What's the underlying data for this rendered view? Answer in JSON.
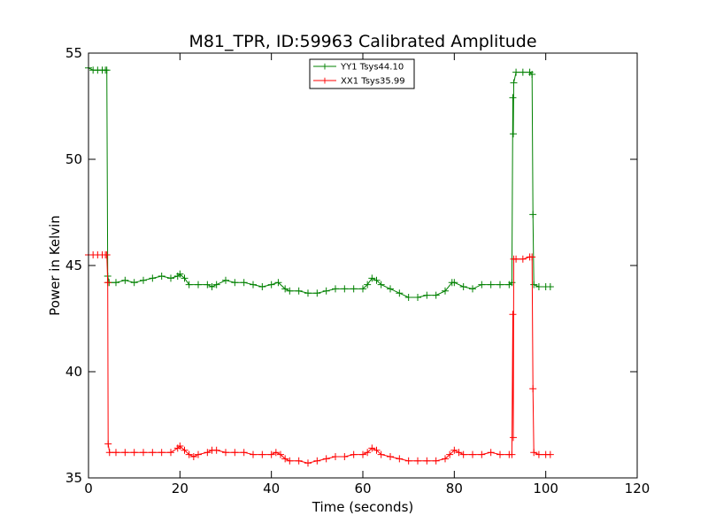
{
  "chart_data": {
    "type": "line",
    "title": "M81_TPR, ID:59963 Calibrated Amplitude",
    "xlabel": "Time (seconds)",
    "ylabel": "Power in Kelvin",
    "xlim": [
      0,
      120
    ],
    "ylim": [
      35,
      55
    ],
    "x_ticks": [
      "0",
      "20",
      "40",
      "60",
      "80",
      "100",
      "120"
    ],
    "y_ticks": [
      "35",
      "40",
      "45",
      "50",
      "55"
    ],
    "grid": false,
    "legend_position": "top-center",
    "marker": "+",
    "series": [
      {
        "name": "YY1 Tsys44.10",
        "color": "#008000",
        "points": [
          [
            0.0,
            54.3
          ],
          [
            1.0,
            54.2
          ],
          [
            2.0,
            54.2
          ],
          [
            3.0,
            54.2
          ],
          [
            3.7,
            54.2
          ],
          [
            4.0,
            54.2
          ],
          [
            4.2,
            44.5
          ],
          [
            4.5,
            44.2
          ],
          [
            6.0,
            44.2
          ],
          [
            8.0,
            44.3
          ],
          [
            10.0,
            44.2
          ],
          [
            12.0,
            44.3
          ],
          [
            14.0,
            44.4
          ],
          [
            16.0,
            44.5
          ],
          [
            18.0,
            44.4
          ],
          [
            19.5,
            44.5
          ],
          [
            20.0,
            44.6
          ],
          [
            21.0,
            44.4
          ],
          [
            22.0,
            44.1
          ],
          [
            24.0,
            44.1
          ],
          [
            26.0,
            44.1
          ],
          [
            27.0,
            44.0
          ],
          [
            28.0,
            44.1
          ],
          [
            30.0,
            44.3
          ],
          [
            32.0,
            44.2
          ],
          [
            34.0,
            44.2
          ],
          [
            36.0,
            44.1
          ],
          [
            38.0,
            44.0
          ],
          [
            40.0,
            44.1
          ],
          [
            41.5,
            44.2
          ],
          [
            43.0,
            43.9
          ],
          [
            44.0,
            43.8
          ],
          [
            46.0,
            43.8
          ],
          [
            48.0,
            43.7
          ],
          [
            50.0,
            43.7
          ],
          [
            52.0,
            43.8
          ],
          [
            54.0,
            43.9
          ],
          [
            56.0,
            43.9
          ],
          [
            58.0,
            43.9
          ],
          [
            60.0,
            43.9
          ],
          [
            61.0,
            44.1
          ],
          [
            62.0,
            44.4
          ],
          [
            63.0,
            44.3
          ],
          [
            64.0,
            44.1
          ],
          [
            66.0,
            43.9
          ],
          [
            68.0,
            43.7
          ],
          [
            70.0,
            43.5
          ],
          [
            72.0,
            43.5
          ],
          [
            74.0,
            43.6
          ],
          [
            76.0,
            43.6
          ],
          [
            78.0,
            43.8
          ],
          [
            79.5,
            44.2
          ],
          [
            80.0,
            44.2
          ],
          [
            82.0,
            44.0
          ],
          [
            84.0,
            43.9
          ],
          [
            86.0,
            44.1
          ],
          [
            88.0,
            44.1
          ],
          [
            90.0,
            44.1
          ],
          [
            92.0,
            44.1
          ],
          [
            92.6,
            44.2
          ],
          [
            92.8,
            52.9
          ],
          [
            92.9,
            51.2
          ],
          [
            93.0,
            53.6
          ],
          [
            93.5,
            54.1
          ],
          [
            95.0,
            54.1
          ],
          [
            96.5,
            54.1
          ],
          [
            97.0,
            54.0
          ],
          [
            97.2,
            47.4
          ],
          [
            97.4,
            44.1
          ],
          [
            98.5,
            44.0
          ],
          [
            100.0,
            44.0
          ],
          [
            101.0,
            44.0
          ]
        ]
      },
      {
        "name": "XX1 Tsys35.99",
        "color": "#ff0000",
        "points": [
          [
            0.0,
            45.5
          ],
          [
            1.0,
            45.5
          ],
          [
            2.0,
            45.5
          ],
          [
            3.0,
            45.5
          ],
          [
            3.7,
            45.5
          ],
          [
            4.0,
            45.5
          ],
          [
            4.2,
            44.2
          ],
          [
            4.3,
            36.6
          ],
          [
            4.6,
            36.2
          ],
          [
            6.0,
            36.2
          ],
          [
            8.0,
            36.2
          ],
          [
            10.0,
            36.2
          ],
          [
            12.0,
            36.2
          ],
          [
            14.0,
            36.2
          ],
          [
            16.0,
            36.2
          ],
          [
            18.0,
            36.2
          ],
          [
            19.5,
            36.4
          ],
          [
            20.0,
            36.5
          ],
          [
            21.0,
            36.3
          ],
          [
            22.0,
            36.1
          ],
          [
            23.0,
            36.0
          ],
          [
            24.0,
            36.1
          ],
          [
            26.0,
            36.2
          ],
          [
            27.0,
            36.3
          ],
          [
            28.0,
            36.3
          ],
          [
            30.0,
            36.2
          ],
          [
            32.0,
            36.2
          ],
          [
            34.0,
            36.2
          ],
          [
            36.0,
            36.1
          ],
          [
            38.0,
            36.1
          ],
          [
            40.0,
            36.1
          ],
          [
            41.0,
            36.2
          ],
          [
            42.0,
            36.1
          ],
          [
            43.0,
            35.9
          ],
          [
            44.0,
            35.8
          ],
          [
            46.0,
            35.8
          ],
          [
            48.0,
            35.7
          ],
          [
            50.0,
            35.8
          ],
          [
            52.0,
            35.9
          ],
          [
            54.0,
            36.0
          ],
          [
            56.0,
            36.0
          ],
          [
            58.0,
            36.1
          ],
          [
            60.0,
            36.1
          ],
          [
            61.0,
            36.2
          ],
          [
            62.0,
            36.4
          ],
          [
            63.0,
            36.3
          ],
          [
            64.0,
            36.1
          ],
          [
            66.0,
            36.0
          ],
          [
            68.0,
            35.9
          ],
          [
            70.0,
            35.8
          ],
          [
            72.0,
            35.8
          ],
          [
            74.0,
            35.8
          ],
          [
            76.0,
            35.8
          ],
          [
            78.0,
            35.9
          ],
          [
            79.0,
            36.1
          ],
          [
            80.0,
            36.3
          ],
          [
            81.0,
            36.2
          ],
          [
            82.0,
            36.1
          ],
          [
            84.0,
            36.1
          ],
          [
            86.0,
            36.1
          ],
          [
            88.0,
            36.2
          ],
          [
            90.0,
            36.1
          ],
          [
            92.0,
            36.1
          ],
          [
            92.6,
            36.1
          ],
          [
            92.8,
            42.7
          ],
          [
            92.9,
            36.9
          ],
          [
            93.0,
            45.3
          ],
          [
            93.5,
            45.3
          ],
          [
            95.0,
            45.3
          ],
          [
            96.5,
            45.4
          ],
          [
            97.0,
            45.4
          ],
          [
            97.2,
            39.2
          ],
          [
            97.4,
            36.2
          ],
          [
            98.5,
            36.1
          ],
          [
            100.0,
            36.1
          ],
          [
            101.0,
            36.1
          ]
        ]
      }
    ]
  }
}
